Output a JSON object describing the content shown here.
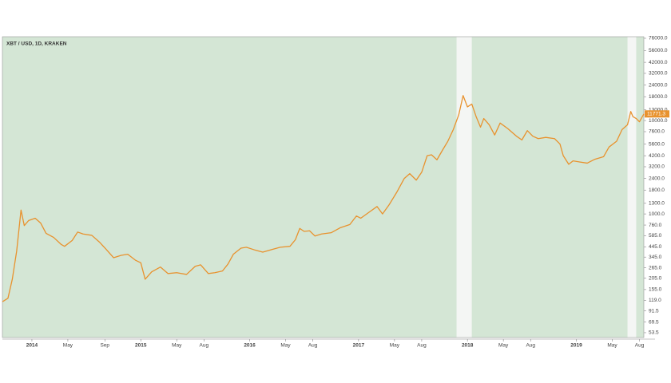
{
  "chart_data": {
    "type": "line",
    "title": "XBT / USD, 1D, KRAKEN",
    "log_y": true,
    "background_color": "#d4e6d5",
    "unshaded_ranges": [
      [
        2017.9,
        2018.04
      ],
      [
        2019.47,
        2019.55
      ]
    ],
    "x": [
      2013.73,
      2013.78,
      2013.82,
      2013.86,
      2013.9,
      2013.93,
      2013.97,
      2014.03,
      2014.08,
      2014.13,
      2014.2,
      2014.27,
      2014.3,
      2014.37,
      2014.42,
      2014.47,
      2014.55,
      2014.62,
      2014.68,
      2014.75,
      2014.82,
      2014.88,
      2014.95,
      2015.0,
      2015.04,
      2015.1,
      2015.18,
      2015.25,
      2015.33,
      2015.42,
      2015.5,
      2015.55,
      2015.62,
      2015.68,
      2015.75,
      2015.8,
      2015.85,
      2015.92,
      2015.97,
      2016.05,
      2016.12,
      2016.2,
      2016.28,
      2016.37,
      2016.42,
      2016.46,
      2016.5,
      2016.55,
      2016.6,
      2016.66,
      2016.75,
      2016.83,
      2016.92,
      2016.98,
      2017.02,
      2017.1,
      2017.17,
      2017.22,
      2017.28,
      2017.35,
      2017.42,
      2017.47,
      2017.53,
      2017.58,
      2017.63,
      2017.67,
      2017.72,
      2017.77,
      2017.82,
      2017.87,
      2017.92,
      2017.96,
      2018.0,
      2018.04,
      2018.08,
      2018.12,
      2018.15,
      2018.2,
      2018.25,
      2018.3,
      2018.37,
      2018.45,
      2018.5,
      2018.55,
      2018.6,
      2018.65,
      2018.72,
      2018.8,
      2018.85,
      2018.88,
      2018.93,
      2018.97,
      2019.03,
      2019.1,
      2019.17,
      2019.25,
      2019.3,
      2019.37,
      2019.42,
      2019.47,
      2019.5,
      2019.52,
      2019.55,
      2019.58,
      2019.62
    ],
    "series": [
      {
        "name": "XBT / USD",
        "color": "#e8922e",
        "values": [
          115,
          125,
          200,
          400,
          1100,
          750,
          850,
          900,
          800,
          620,
          560,
          470,
          450,
          520,
          640,
          610,
          590,
          500,
          420,
          340,
          360,
          370,
          320,
          300,
          200,
          240,
          270,
          230,
          235,
          225,
          275,
          285,
          230,
          235,
          245,
          290,
          370,
          430,
          440,
          410,
          390,
          415,
          440,
          450,
          530,
          700,
          650,
          660,
          580,
          610,
          630,
          710,
          770,
          950,
          900,
          1050,
          1200,
          1000,
          1250,
          1700,
          2400,
          2700,
          2300,
          2800,
          4200,
          4300,
          3800,
          4800,
          6000,
          8000,
          11500,
          18500,
          14000,
          15000,
          11000,
          8500,
          10500,
          9000,
          7000,
          9400,
          8200,
          6800,
          6200,
          7800,
          6800,
          6400,
          6600,
          6400,
          5600,
          4200,
          3400,
          3700,
          3600,
          3500,
          3850,
          4100,
          5200,
          6000,
          8000,
          9000,
          12500,
          11000,
          10500,
          9700,
          11771.3
        ]
      }
    ],
    "last_price": 11771.3,
    "xlim": [
      2013.729,
      2019.62
    ],
    "ylim": [
      47.5,
      79000
    ],
    "xticks": [
      2014,
      {
        "value": 2014.33,
        "label": "May"
      },
      {
        "value": 2014.67,
        "label": "Sep"
      },
      2015,
      {
        "value": 2015.33,
        "label": "May"
      },
      {
        "value": 2015.58,
        "label": "Aug"
      },
      2016,
      {
        "value": 2016.33,
        "label": "May"
      },
      {
        "value": 2016.58,
        "label": "Aug"
      },
      2017,
      {
        "value": 2017.33,
        "label": "May"
      },
      {
        "value": 2017.58,
        "label": "Aug"
      },
      2018,
      {
        "value": 2018.33,
        "label": "May"
      },
      {
        "value": 2018.58,
        "label": "Aug"
      },
      2019,
      {
        "value": 2019.33,
        "label": "May"
      },
      {
        "value": 2019.58,
        "label": "Aug"
      }
    ],
    "yticks": [
      {
        "value": 76000,
        "label": "76000.0"
      },
      {
        "value": 56000,
        "label": "56000.0"
      },
      {
        "value": 42000,
        "label": "42000.0"
      },
      {
        "value": 32000,
        "label": "32000.0"
      },
      {
        "value": 24000,
        "label": "24000.0"
      },
      {
        "value": 18000,
        "label": "18000.0"
      },
      {
        "value": 13000,
        "label": "13000.0"
      },
      {
        "value": 10000,
        "label": "10000.0"
      },
      {
        "value": 7600,
        "label": "7600.0"
      },
      {
        "value": 5600,
        "label": "5600.0"
      },
      {
        "value": 4200,
        "label": "4200.0"
      },
      {
        "value": 3200,
        "label": "3200.0"
      },
      {
        "value": 2400,
        "label": "2400.0"
      },
      {
        "value": 1800,
        "label": "1800.0"
      },
      {
        "value": 1300,
        "label": "1300.0"
      },
      {
        "value": 1000,
        "label": "1000.0"
      },
      {
        "value": 760,
        "label": "760.0"
      },
      {
        "value": 585,
        "label": "585.0"
      },
      {
        "value": 445,
        "label": "445.0"
      },
      {
        "value": 345,
        "label": "345.0"
      },
      {
        "value": 265,
        "label": "265.0"
      },
      {
        "value": 205,
        "label": "205.0"
      },
      {
        "value": 155,
        "label": "155.0"
      },
      {
        "value": 119,
        "label": "119.0"
      },
      91.5,
      69.5,
      53.5
    ]
  }
}
